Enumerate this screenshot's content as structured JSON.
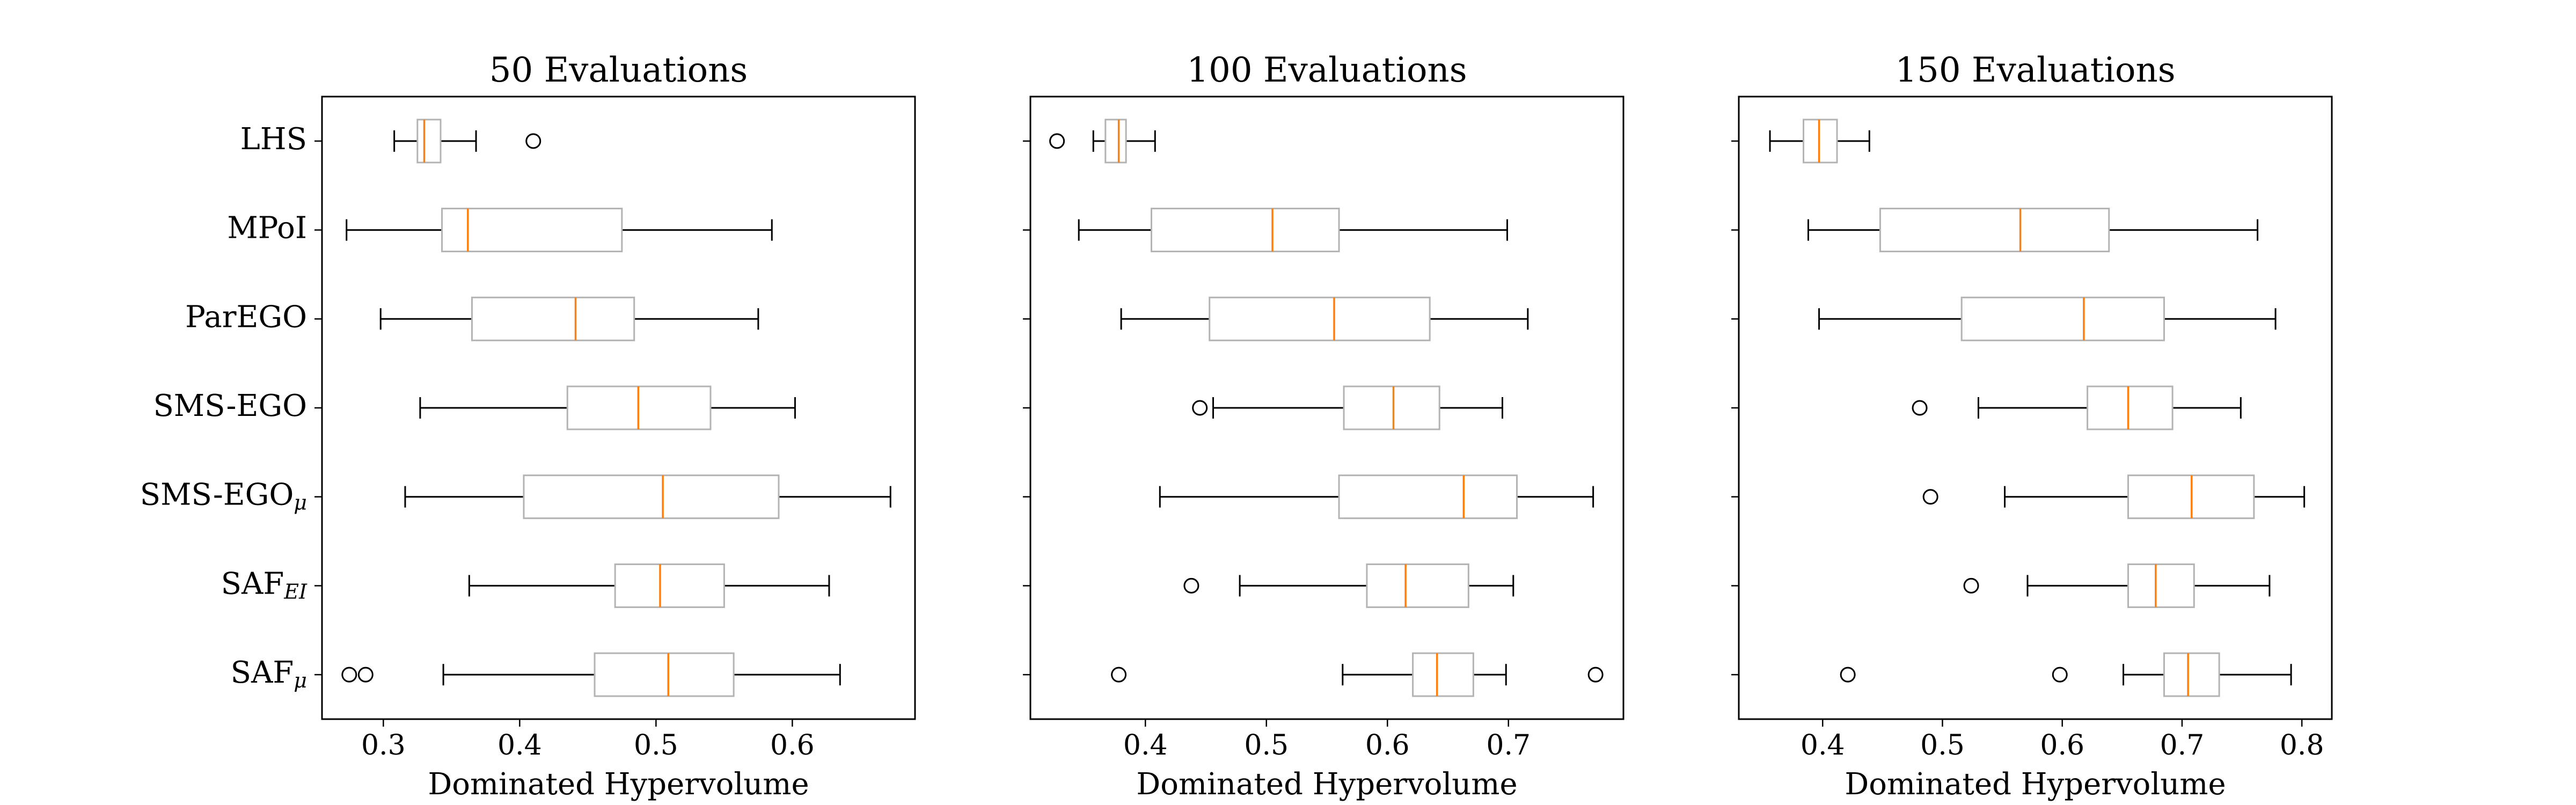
{
  "chart_data": [
    {
      "type": "boxplot",
      "title": "50 Evaluations",
      "xlabel": "Dominated Hypervolume",
      "xlim": [
        0.255,
        0.69
      ],
      "xticks": [
        "0.3",
        "0.4",
        "0.5",
        "0.6"
      ],
      "xtick_values": [
        0.3,
        0.4,
        0.5,
        0.6
      ],
      "categories": [
        "LHS",
        "MPoI",
        "ParEGO",
        "SMS-EGO",
        "SMS-EGO_μ",
        "SAF_EI",
        "SAF_μ"
      ],
      "boxes": [
        {
          "whislo": 0.308,
          "q1": 0.325,
          "med": 0.33,
          "q3": 0.342,
          "whishi": 0.368,
          "fliers": [
            0.41
          ]
        },
        {
          "whislo": 0.273,
          "q1": 0.343,
          "med": 0.362,
          "q3": 0.475,
          "whishi": 0.585,
          "fliers": []
        },
        {
          "whislo": 0.298,
          "q1": 0.365,
          "med": 0.441,
          "q3": 0.484,
          "whishi": 0.575,
          "fliers": []
        },
        {
          "whislo": 0.327,
          "q1": 0.435,
          "med": 0.487,
          "q3": 0.54,
          "whishi": 0.602,
          "fliers": []
        },
        {
          "whislo": 0.316,
          "q1": 0.403,
          "med": 0.505,
          "q3": 0.59,
          "whishi": 0.672,
          "fliers": []
        },
        {
          "whislo": 0.363,
          "q1": 0.47,
          "med": 0.503,
          "q3": 0.55,
          "whishi": 0.627,
          "fliers": []
        },
        {
          "whislo": 0.344,
          "q1": 0.455,
          "med": 0.509,
          "q3": 0.557,
          "whishi": 0.635,
          "fliers": [
            0.275,
            0.287
          ]
        }
      ]
    },
    {
      "type": "boxplot",
      "title": "100 Evaluations",
      "xlabel": "Dominated Hypervolume",
      "xlim": [
        0.305,
        0.795
      ],
      "xticks": [
        "0.4",
        "0.5",
        "0.6",
        "0.7"
      ],
      "xtick_values": [
        0.4,
        0.5,
        0.6,
        0.7
      ],
      "categories": [
        "LHS",
        "MPoI",
        "ParEGO",
        "SMS-EGO",
        "SMS-EGO_μ",
        "SAF_EI",
        "SAF_μ"
      ],
      "boxes": [
        {
          "whislo": 0.357,
          "q1": 0.367,
          "med": 0.378,
          "q3": 0.384,
          "whishi": 0.408,
          "fliers": [
            0.327
          ]
        },
        {
          "whislo": 0.345,
          "q1": 0.405,
          "med": 0.505,
          "q3": 0.56,
          "whishi": 0.699,
          "fliers": []
        },
        {
          "whislo": 0.38,
          "q1": 0.453,
          "med": 0.556,
          "q3": 0.635,
          "whishi": 0.716,
          "fliers": []
        },
        {
          "whislo": 0.456,
          "q1": 0.564,
          "med": 0.605,
          "q3": 0.643,
          "whishi": 0.695,
          "fliers": [
            0.445
          ]
        },
        {
          "whislo": 0.412,
          "q1": 0.56,
          "med": 0.663,
          "q3": 0.707,
          "whishi": 0.77,
          "fliers": []
        },
        {
          "whislo": 0.478,
          "q1": 0.583,
          "med": 0.615,
          "q3": 0.667,
          "whishi": 0.704,
          "fliers": [
            0.438
          ]
        },
        {
          "whislo": 0.563,
          "q1": 0.621,
          "med": 0.641,
          "q3": 0.671,
          "whishi": 0.698,
          "fliers": [
            0.378,
            0.772
          ]
        }
      ]
    },
    {
      "type": "boxplot",
      "title": "150 Evaluations",
      "xlabel": "Dominated Hypervolume",
      "xlim": [
        0.33,
        0.825
      ],
      "xticks": [
        "0.4",
        "0.5",
        "0.6",
        "0.7",
        "0.8"
      ],
      "xtick_values": [
        0.4,
        0.5,
        0.6,
        0.7,
        0.8
      ],
      "categories": [
        "LHS",
        "MPoI",
        "ParEGO",
        "SMS-EGO",
        "SMS-EGO_μ",
        "SAF_EI",
        "SAF_μ"
      ],
      "boxes": [
        {
          "whislo": 0.356,
          "q1": 0.384,
          "med": 0.397,
          "q3": 0.412,
          "whishi": 0.439,
          "fliers": []
        },
        {
          "whislo": 0.388,
          "q1": 0.448,
          "med": 0.565,
          "q3": 0.639,
          "whishi": 0.763,
          "fliers": []
        },
        {
          "whislo": 0.397,
          "q1": 0.516,
          "med": 0.618,
          "q3": 0.685,
          "whishi": 0.778,
          "fliers": []
        },
        {
          "whislo": 0.53,
          "q1": 0.621,
          "med": 0.655,
          "q3": 0.692,
          "whishi": 0.749,
          "fliers": [
            0.481
          ]
        },
        {
          "whislo": 0.552,
          "q1": 0.655,
          "med": 0.708,
          "q3": 0.76,
          "whishi": 0.802,
          "fliers": [
            0.49
          ]
        },
        {
          "whislo": 0.571,
          "q1": 0.655,
          "med": 0.678,
          "q3": 0.71,
          "whishi": 0.773,
          "fliers": [
            0.524
          ]
        },
        {
          "whislo": 0.651,
          "q1": 0.685,
          "med": 0.705,
          "q3": 0.731,
          "whishi": 0.791,
          "fliers": [
            0.421,
            0.598
          ]
        }
      ]
    }
  ],
  "colors": {
    "box": "#b3b3b3",
    "median": "#ff7f0e",
    "whisker": "#000000"
  }
}
